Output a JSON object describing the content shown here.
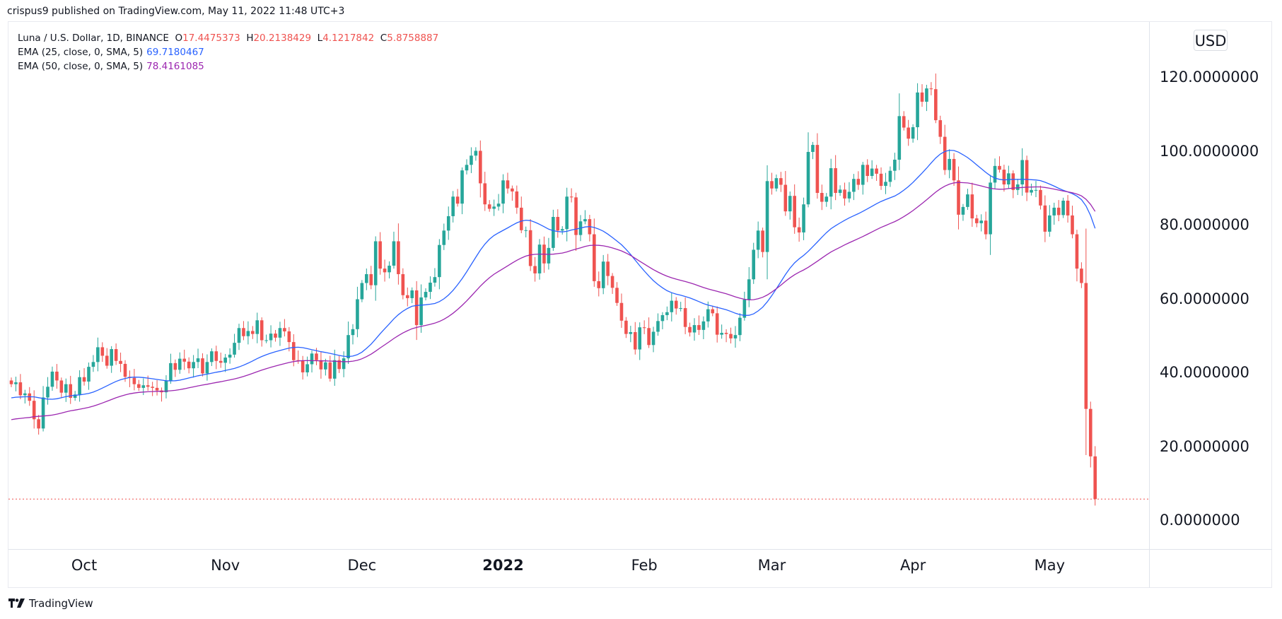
{
  "published": "crispus9 published on TradingView.com, May 11, 2022 11:48 UTC+3",
  "legend": {
    "symbol": "Luna / U.S. Dollar, 1D, BINANCE",
    "o_label": "O",
    "o": "17.4475373",
    "h_label": "H",
    "h": "20.2138429",
    "l_label": "L",
    "l": "4.1217842",
    "c_label": "C",
    "c": "5.8758887",
    "ema1_label": "EMA (25, close, 0, SMA, 5)",
    "ema1_value": "69.7180467",
    "ema2_label": "EMA (50, close, 0, SMA, 5)",
    "ema2_value": "78.4161085"
  },
  "currency": "USD",
  "footer": {
    "logo_text": "TradingView"
  },
  "colors": {
    "up": "#26a69a",
    "down": "#ef5350",
    "ema25": "#2962ff",
    "ema50": "#9c27b0",
    "last_price_line": "#ef5350"
  },
  "chart_data": {
    "type": "candlestick",
    "title": "Luna / U.S. Dollar, 1D, BINANCE",
    "ylim": [
      -7,
      128
    ],
    "y_ticks": [
      "0.0000000",
      "20.0000000",
      "40.0000000",
      "60.0000000",
      "80.0000000",
      "100.0000000",
      "120.0000000"
    ],
    "y_tick_values": [
      0,
      20,
      40,
      60,
      80,
      100,
      120
    ],
    "x_ticks": [
      {
        "label": "Oct",
        "date": "2021-10-01"
      },
      {
        "label": "Nov",
        "date": "2021-11-01"
      },
      {
        "label": "Dec",
        "date": "2021-12-01"
      },
      {
        "label": "2022",
        "date": "2022-01-01",
        "bold": true
      },
      {
        "label": "Feb",
        "date": "2022-02-01"
      },
      {
        "label": "Mar",
        "date": "2022-03-01"
      },
      {
        "label": "Apr",
        "date": "2022-04-01"
      },
      {
        "label": "May",
        "date": "2022-05-01"
      }
    ],
    "grid": false,
    "last_price": 5.8758887,
    "last_candle": {
      "date": "2022-05-11",
      "open": 17.4475373,
      "high": 20.2138429,
      "low": 4.1217842,
      "close": 5.8758887
    },
    "daily_close_by_month": [
      {
        "month": "2021-09",
        "first_day": 15,
        "close": [
          37,
          37.5,
          34,
          34.5,
          32.5,
          27.5,
          25,
          33.4,
          36.3,
          40.4,
          38,
          34.7,
          37,
          33.3,
          34.2,
          38.9
        ]
      },
      {
        "month": "2021-10",
        "first_day": 1,
        "close": [
          37.7,
          41.7,
          43,
          47,
          44.7,
          42,
          46.5,
          43.3,
          42.5,
          39,
          38.7,
          37,
          36,
          36.7,
          36.3,
          36,
          35.3,
          34.8,
          37.9,
          42.7,
          40.9,
          43.9,
          43.1,
          41.3,
          43,
          44,
          39.9,
          43,
          45.9,
          43.3,
          42.8
        ]
      },
      {
        "month": "2021-11",
        "first_day": 1,
        "close": [
          44.2,
          45,
          48.2,
          52.2,
          50,
          51.4,
          50.6,
          54.3,
          48.9,
          48.9,
          50.7,
          49.6,
          52.2,
          51.3,
          48.4,
          43.5,
          43.3,
          40.2,
          42.4,
          45.3,
          43.5,
          41,
          42.9,
          38.5,
          43.5,
          41.1,
          44,
          50.3,
          51.9,
          60
        ]
      },
      {
        "month": "2021-12",
        "first_day": 1,
        "close": [
          64.4,
          66.8,
          63.8,
          75.7,
          68.3,
          67.3,
          69.1,
          75.7,
          66.8,
          61.1,
          60.3,
          62.4,
          53,
          60.5,
          62,
          64.5,
          66,
          74.7,
          78.6,
          82.5,
          87.8,
          85.9,
          94.9,
          96.4,
          98.9,
          100.2,
          91.4,
          85.7,
          84.5,
          85.1,
          85.9
        ]
      },
      {
        "month": "2022-01",
        "first_day": 1,
        "close": [
          92.2,
          90,
          89.2,
          84.8,
          78.7,
          78.7,
          69,
          67,
          74.8,
          69.7,
          73.9,
          82.3,
          78.6,
          79,
          87.8,
          87.6,
          77.4,
          81.1,
          81.7,
          77.6,
          64.9,
          63,
          70.2,
          66.3,
          63.1,
          59,
          54.2,
          50.6,
          51.1,
          46.4,
          52.4
        ]
      },
      {
        "month": "2022-02",
        "first_day": 1,
        "close": [
          52.2,
          47.6,
          51.2,
          54.1,
          55.7,
          56.5,
          59.6,
          57.5,
          57.6,
          52.5,
          51,
          53,
          51.7,
          54,
          57.3,
          56.2,
          50.4,
          50.9,
          50.6,
          49.4,
          50.3,
          55,
          59.9,
          65.4,
          73.4,
          78.6,
          72.8,
          92
        ]
      },
      {
        "month": "2022-03",
        "first_day": 1,
        "close": [
          90,
          92.8,
          91,
          83.8,
          88,
          79.5,
          78.1,
          85.7,
          99.9,
          101.8,
          88.8,
          86.4,
          87.8,
          95.5,
          88.8,
          89.7,
          87.3,
          89.1,
          92.6,
          91,
          96.4,
          93.4,
          95.4,
          94,
          90.7,
          91.8,
          94.8,
          97.8,
          109.6,
          106.5,
          103.5
        ]
      },
      {
        "month": "2022-04",
        "first_day": 1,
        "close": [
          106.6,
          116,
          113.5,
          117.1,
          116.9,
          108.5,
          104,
          95,
          98,
          92.2,
          82.9,
          85,
          88.4,
          81.9,
          80.6,
          81.3,
          77.6,
          91.6,
          96.1,
          95.1,
          91.1,
          94.1,
          89.6,
          91.1,
          97.7,
          88.9,
          89.6,
          89.6,
          85.4,
          78.3
        ]
      },
      {
        "month": "2022-05",
        "first_day": 1,
        "close": [
          82.7,
          84.8,
          82.8,
          86.7,
          82.7,
          77.6,
          68.3,
          64.4,
          30.3,
          17.45,
          5.88
        ]
      }
    ],
    "series": [
      {
        "name": "EMA (25, close, 0, SMA, 5)",
        "last": 69.7180467
      },
      {
        "name": "EMA (50, close, 0, SMA, 5)",
        "last": 78.4161085
      }
    ]
  }
}
